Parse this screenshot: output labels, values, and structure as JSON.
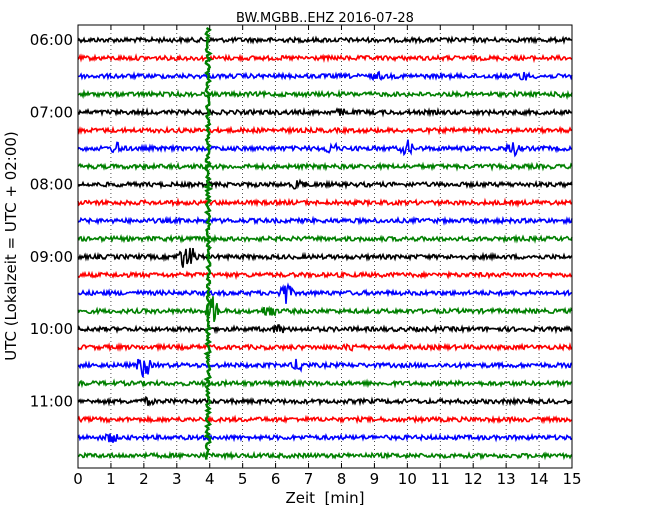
{
  "chart_data": {
    "type": "line",
    "title": "BW.MGBB..EHZ 2016-07-28",
    "xlabel": "Zeit  [min]",
    "ylabel": "UTC (Lokalzeit = UTC + 02:00)",
    "xlim": [
      0,
      15
    ],
    "x_ticks": [
      "0",
      "1",
      "2",
      "3",
      "4",
      "5",
      "6",
      "7",
      "8",
      "9",
      "10",
      "11",
      "12",
      "13",
      "14",
      "15"
    ],
    "y_ticks": [
      "06:00",
      "07:00",
      "08:00",
      "09:00",
      "10:00",
      "11:00"
    ],
    "grid": "vertical dotted",
    "series_colors": [
      "#000000",
      "#ff0000",
      "#0000ff",
      "#008000"
    ],
    "traces": [
      {
        "start": "06:00",
        "color": "#000000",
        "events": []
      },
      {
        "start": "06:15",
        "color": "#ff0000",
        "events": []
      },
      {
        "start": "06:30",
        "color": "#0000ff",
        "events": [
          {
            "t": 9.1,
            "amp": 0.3
          },
          {
            "t": 13.5,
            "amp": 0.4
          }
        ]
      },
      {
        "start": "06:45",
        "color": "#008000",
        "events": [
          {
            "t": 14.8,
            "amp": 0.4
          }
        ]
      },
      {
        "start": "07:00",
        "color": "#000000",
        "events": [
          {
            "t": 8.0,
            "amp": 0.3
          }
        ]
      },
      {
        "start": "07:15",
        "color": "#ff0000",
        "events": []
      },
      {
        "start": "07:30",
        "color": "#0000ff",
        "events": [
          {
            "t": 1.2,
            "amp": 0.6
          },
          {
            "t": 7.7,
            "amp": 0.6
          },
          {
            "t": 10.0,
            "amp": 0.8
          },
          {
            "t": 13.2,
            "amp": 0.8
          }
        ]
      },
      {
        "start": "07:45",
        "color": "#008000",
        "events": []
      },
      {
        "start": "08:00",
        "color": "#000000",
        "events": [
          {
            "t": 6.7,
            "amp": 0.5
          }
        ]
      },
      {
        "start": "08:15",
        "color": "#ff0000",
        "events": []
      },
      {
        "start": "08:30",
        "color": "#0000ff",
        "events": []
      },
      {
        "start": "08:45",
        "color": "#008000",
        "events": []
      },
      {
        "start": "09:00",
        "color": "#000000",
        "events": [
          {
            "t": 3.2,
            "amp": 1.1
          },
          {
            "t": 3.45,
            "amp": 0.9
          }
        ]
      },
      {
        "start": "09:15",
        "color": "#ff0000",
        "events": []
      },
      {
        "start": "09:30",
        "color": "#0000ff",
        "events": [
          {
            "t": 6.3,
            "amp": 1.3
          }
        ]
      },
      {
        "start": "09:45",
        "color": "#008000",
        "events": [
          {
            "t": 4.1,
            "amp": 1.6
          },
          {
            "t": 5.8,
            "amp": 0.8
          }
        ]
      },
      {
        "start": "10:00",
        "color": "#000000",
        "events": [
          {
            "t": 6.1,
            "amp": 0.4
          }
        ]
      },
      {
        "start": "10:15",
        "color": "#ff0000",
        "events": [
          {
            "t": 8.3,
            "amp": 0.3
          }
        ]
      },
      {
        "start": "10:30",
        "color": "#0000ff",
        "events": [
          {
            "t": 2.0,
            "amp": 1.6
          },
          {
            "t": 6.7,
            "amp": 0.7
          }
        ]
      },
      {
        "start": "10:45",
        "color": "#008000",
        "events": []
      },
      {
        "start": "11:00",
        "color": "#000000",
        "events": [
          {
            "t": 2.1,
            "amp": 0.3
          }
        ]
      },
      {
        "start": "11:15",
        "color": "#ff0000",
        "events": []
      },
      {
        "start": "11:30",
        "color": "#0000ff",
        "events": [
          {
            "t": 1.0,
            "amp": 0.5
          }
        ]
      },
      {
        "start": "11:45",
        "color": "#008000",
        "events": []
      }
    ],
    "spike": {
      "t": 3.95,
      "color": "#008000",
      "from": "06:00",
      "to": "11:45"
    }
  }
}
